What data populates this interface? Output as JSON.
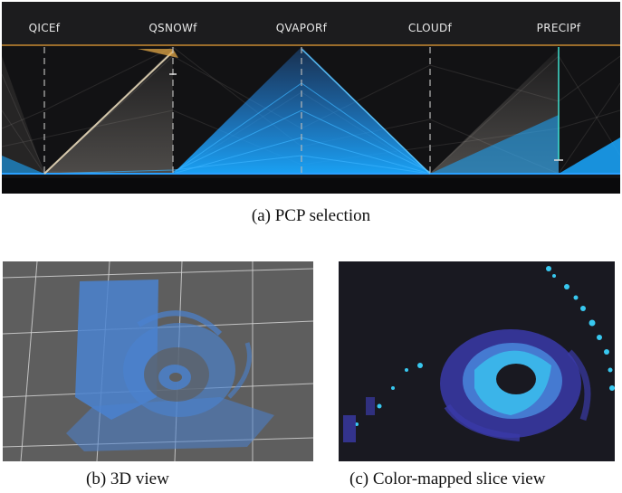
{
  "pcp": {
    "caption": "(a) PCP selection",
    "axes": [
      "QICEf",
      "QSNOWf",
      "QVAPORf",
      "CLOUDf",
      "PRECIPf"
    ],
    "colors": {
      "background": "#121214",
      "selected": "#1e90ff",
      "context": "#d8d0c4",
      "highlight": "#f0b048"
    }
  },
  "view3d": {
    "caption": "(b) 3D view",
    "colors": {
      "background": "#5e5e5e",
      "grid": "#d8d8d8",
      "volume": "#4a82d0"
    }
  },
  "slice": {
    "caption": "(c) Color-mapped slice view",
    "colors": {
      "background": "#191921",
      "low": "#3a3aa8",
      "high": "#38c8f0"
    }
  }
}
